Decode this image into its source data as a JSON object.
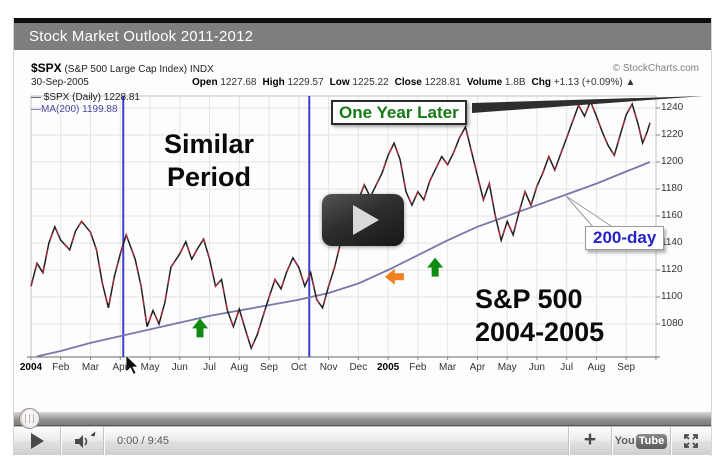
{
  "player": {
    "title_bar": "Stock Market Outlook 2011-2012",
    "time_display": "0:00 / 9:45",
    "plus_label": "+",
    "logo_you": "You",
    "logo_tube": "Tube"
  },
  "chart_header": {
    "symbol": "$SPX",
    "description": " (S&P 500 Large Cap Index) INDX",
    "date": "30-Sep-2005",
    "watermark": "© StockCharts.com",
    "quote_items": [
      {
        "label": "Open",
        "value": "1227.68"
      },
      {
        "label": "High",
        "value": "1229.57"
      },
      {
        "label": "Low",
        "value": "1225.22"
      },
      {
        "label": "Close",
        "value": "1228.81"
      },
      {
        "label": "Volume",
        "value": "1.8B"
      },
      {
        "label": "Chg",
        "value": "+1.13 (+0.09%) ▲"
      }
    ]
  },
  "legend": [
    {
      "swatch": "—",
      "label": " $SPX (Daily) 1228.81",
      "color": "#1a1a1a"
    },
    {
      "swatch": "—",
      "label": "MA(200) 1199.88",
      "color": "#4848a8"
    }
  ],
  "annotations": {
    "similar_line1": "Similar",
    "similar_line2": "Period",
    "one_year_later": "One Year Later",
    "ma_callout": "200-day",
    "sp_line1": "S&P 500",
    "sp_line2": "2004-2005"
  },
  "colors": {
    "price_line": "#1f1f1f",
    "price_accent": "#a12c3c",
    "ma_line": "#7878aa",
    "vertical_line": "#3d3dd4",
    "grid": "#e4e4e4",
    "green_arrow": "#118a11",
    "orange_arrow": "#f08020"
  },
  "chart_data": {
    "type": "line",
    "title": "$SPX daily close with 200-day moving average, Jan 2004 - Sep 2005",
    "x_unit": "months since Jan 2004",
    "x_tick_labels": [
      "2004",
      "Feb",
      "Mar",
      "Apr",
      "May",
      "Jun",
      "Jul",
      "Aug",
      "Sep",
      "Oct",
      "Nov",
      "Dec",
      "2005",
      "Feb",
      "Mar",
      "Apr",
      "May",
      "Jun",
      "Jul",
      "Aug",
      "Sep"
    ],
    "y_ticks": [
      1240,
      1220,
      1200,
      1180,
      1160,
      1140,
      1120,
      1100,
      1080
    ],
    "ylim": [
      1055,
      1260
    ],
    "legend_position": "top-left",
    "grid": true,
    "series": [
      {
        "name": "$SPX (Daily)",
        "last": 1228.81,
        "points": [
          [
            0,
            1108
          ],
          [
            0.2,
            1125
          ],
          [
            0.4,
            1118
          ],
          [
            0.6,
            1140
          ],
          [
            0.8,
            1152
          ],
          [
            1,
            1142
          ],
          [
            1.3,
            1135
          ],
          [
            1.5,
            1149
          ],
          [
            1.7,
            1156
          ],
          [
            2,
            1148
          ],
          [
            2.2,
            1135
          ],
          [
            2.4,
            1110
          ],
          [
            2.6,
            1092
          ],
          [
            2.8,
            1115
          ],
          [
            3,
            1132
          ],
          [
            3.2,
            1146
          ],
          [
            3.5,
            1128
          ],
          [
            3.7,
            1108
          ],
          [
            3.9,
            1078
          ],
          [
            4.1,
            1090
          ],
          [
            4.3,
            1080
          ],
          [
            4.5,
            1096
          ],
          [
            4.7,
            1122
          ],
          [
            5,
            1132
          ],
          [
            5.2,
            1141
          ],
          [
            5.4,
            1128
          ],
          [
            5.6,
            1136
          ],
          [
            5.8,
            1143
          ],
          [
            6,
            1128
          ],
          [
            6.2,
            1108
          ],
          [
            6.4,
            1113
          ],
          [
            6.6,
            1090
          ],
          [
            6.8,
            1078
          ],
          [
            7,
            1091
          ],
          [
            7.2,
            1076
          ],
          [
            7.4,
            1062
          ],
          [
            7.6,
            1072
          ],
          [
            7.8,
            1086
          ],
          [
            8,
            1100
          ],
          [
            8.2,
            1113
          ],
          [
            8.4,
            1106
          ],
          [
            8.6,
            1119
          ],
          [
            8.8,
            1129
          ],
          [
            9,
            1122
          ],
          [
            9.2,
            1108
          ],
          [
            9.4,
            1118
          ],
          [
            9.6,
            1098
          ],
          [
            9.8,
            1092
          ],
          [
            10,
            1108
          ],
          [
            10.2,
            1122
          ],
          [
            10.4,
            1140
          ],
          [
            10.6,
            1152
          ],
          [
            10.8,
            1163
          ],
          [
            11,
            1172
          ],
          [
            11.2,
            1183
          ],
          [
            11.4,
            1174
          ],
          [
            11.6,
            1183
          ],
          [
            11.8,
            1192
          ],
          [
            12,
            1205
          ],
          [
            12.2,
            1214
          ],
          [
            12.4,
            1202
          ],
          [
            12.6,
            1178
          ],
          [
            12.8,
            1168
          ],
          [
            13,
            1178
          ],
          [
            13.2,
            1172
          ],
          [
            13.4,
            1186
          ],
          [
            13.6,
            1195
          ],
          [
            13.8,
            1204
          ],
          [
            14,
            1198
          ],
          [
            14.2,
            1207
          ],
          [
            14.4,
            1218
          ],
          [
            14.6,
            1226
          ],
          [
            14.8,
            1208
          ],
          [
            15,
            1190
          ],
          [
            15.2,
            1172
          ],
          [
            15.4,
            1184
          ],
          [
            15.6,
            1160
          ],
          [
            15.8,
            1142
          ],
          [
            16,
            1156
          ],
          [
            16.2,
            1146
          ],
          [
            16.4,
            1163
          ],
          [
            16.6,
            1178
          ],
          [
            16.8,
            1168
          ],
          [
            17,
            1182
          ],
          [
            17.2,
            1192
          ],
          [
            17.4,
            1204
          ],
          [
            17.6,
            1194
          ],
          [
            17.8,
            1206
          ],
          [
            18,
            1218
          ],
          [
            18.2,
            1230
          ],
          [
            18.4,
            1242
          ],
          [
            18.6,
            1234
          ],
          [
            18.8,
            1245
          ],
          [
            19,
            1234
          ],
          [
            19.2,
            1222
          ],
          [
            19.4,
            1212
          ],
          [
            19.6,
            1205
          ],
          [
            19.8,
            1220
          ],
          [
            20,
            1235
          ],
          [
            20.2,
            1243
          ],
          [
            20.4,
            1228
          ],
          [
            20.55,
            1214
          ],
          [
            20.7,
            1222
          ],
          [
            20.8,
            1229
          ]
        ]
      },
      {
        "name": "MA(200)",
        "last": 1199.88,
        "points": [
          [
            0.2,
            1056
          ],
          [
            1,
            1060
          ],
          [
            2,
            1066
          ],
          [
            3,
            1071
          ],
          [
            4,
            1076
          ],
          [
            5,
            1081
          ],
          [
            6,
            1086
          ],
          [
            7,
            1090
          ],
          [
            8,
            1094
          ],
          [
            9,
            1098
          ],
          [
            10,
            1103
          ],
          [
            11,
            1110
          ],
          [
            12,
            1120
          ],
          [
            13,
            1131
          ],
          [
            14,
            1142
          ],
          [
            15,
            1152
          ],
          [
            16,
            1160
          ],
          [
            17,
            1168
          ],
          [
            18,
            1176
          ],
          [
            19,
            1184
          ],
          [
            20,
            1193
          ],
          [
            20.8,
            1200
          ]
        ]
      }
    ],
    "vertical_marker_months": [
      3.1,
      9.35
    ],
    "arrows": [
      {
        "type": "up",
        "color": "green",
        "m": 5.68,
        "v": 1076
      },
      {
        "type": "up",
        "color": "green",
        "m": 13.58,
        "v": 1121
      },
      {
        "type": "left",
        "color": "orange",
        "m": 12.26,
        "v": 1115
      }
    ]
  }
}
